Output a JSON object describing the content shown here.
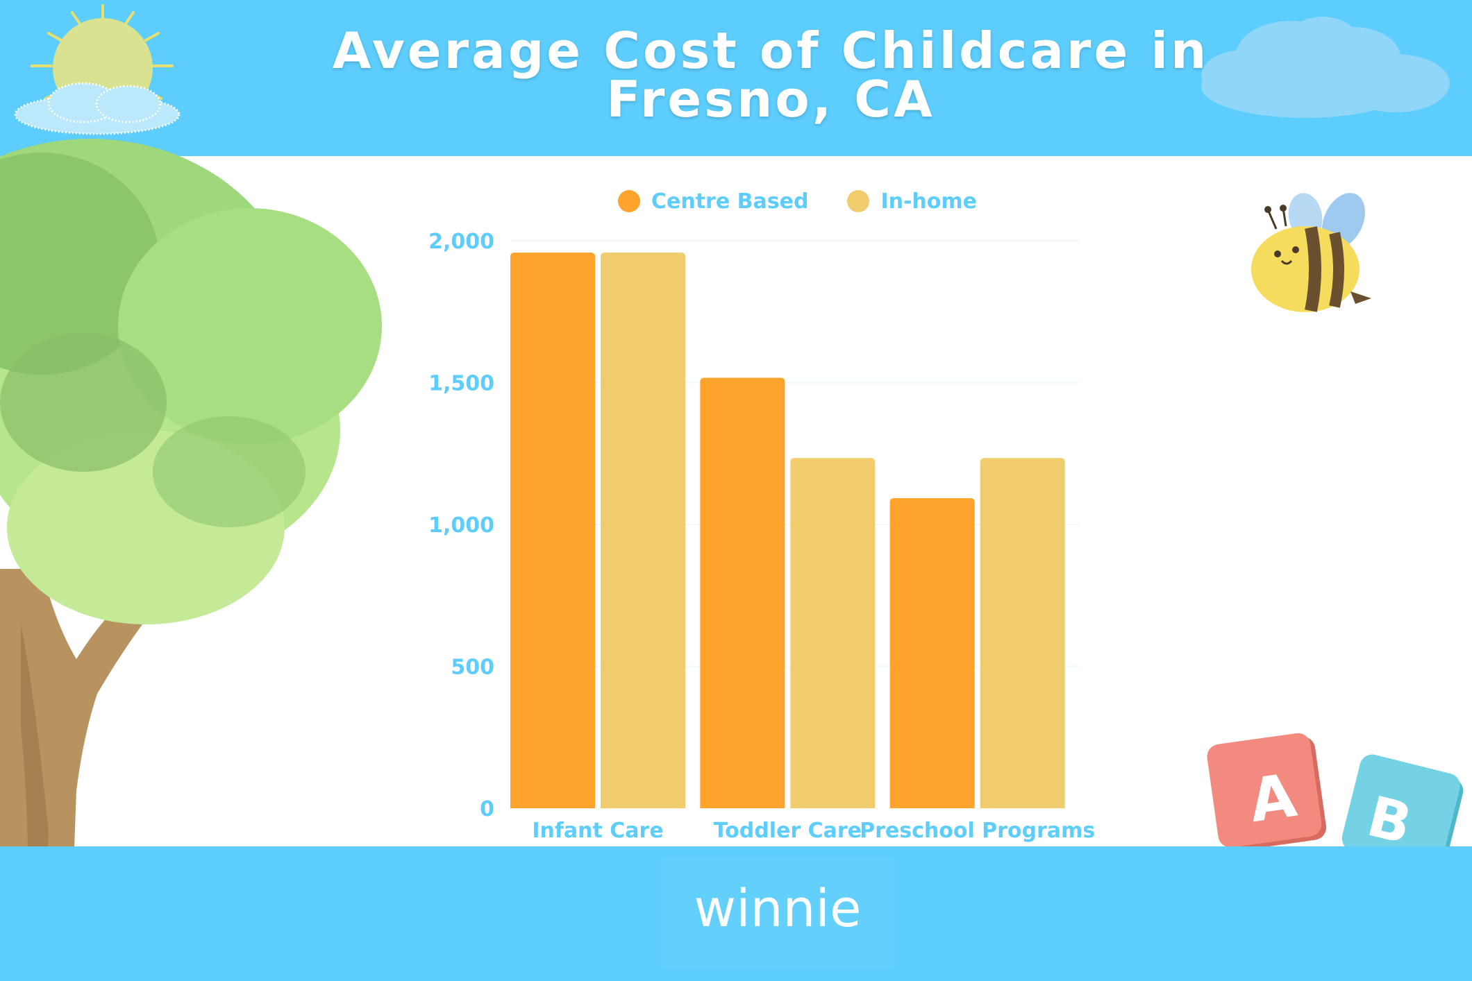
{
  "header": {
    "title_line1": "Average Cost of Childcare in",
    "title_line2": "Fresno, CA"
  },
  "footer": {
    "brand": "winnie"
  },
  "colors": {
    "header_bg": "#5ccdfc",
    "centre_based": "#fea42c",
    "in_home": "#f1cc6c",
    "axis_text": "#5ccdfc"
  },
  "legend": {
    "position": "top-center",
    "items": [
      {
        "label": "Centre Based",
        "color": "#fea42c"
      },
      {
        "label": "In-home",
        "color": "#f1cc6c"
      }
    ]
  },
  "decorations": [
    "sun-icon",
    "cloud-icon",
    "tree-illustration",
    "bee-icon",
    "abc-blocks-icon"
  ],
  "chart_data": {
    "type": "bar",
    "categories": [
      "Infant Care",
      "Toddler Care",
      "Preschool Programs"
    ],
    "series": [
      {
        "name": "Centre Based",
        "values": [
          1958,
          1517,
          1093
        ]
      },
      {
        "name": "In-home",
        "values": [
          1958,
          1234,
          1234
        ]
      }
    ],
    "y_ticks": [
      "0",
      "500",
      "1,000",
      "1,500",
      "2,000"
    ],
    "ylim": [
      0,
      2000
    ],
    "grid": true,
    "title": "Average Cost of Childcare in Fresno, CA"
  }
}
